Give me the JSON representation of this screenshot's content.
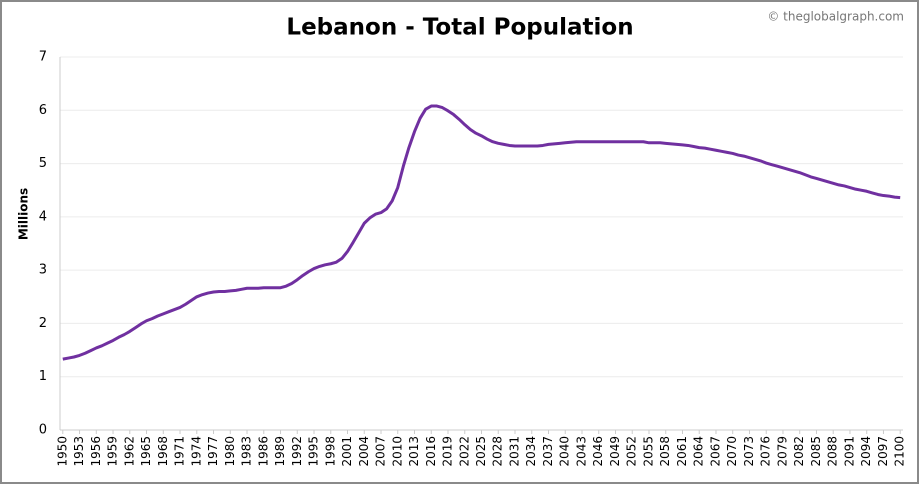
{
  "chart_data": {
    "type": "line",
    "title": "Lebanon - Total Population",
    "watermark": "© theglobalgraph.com",
    "ylabel": "Millions",
    "x": [
      1950,
      1951,
      1952,
      1953,
      1954,
      1955,
      1956,
      1957,
      1958,
      1959,
      1960,
      1961,
      1962,
      1963,
      1964,
      1965,
      1966,
      1967,
      1968,
      1969,
      1970,
      1971,
      1972,
      1973,
      1974,
      1975,
      1976,
      1977,
      1978,
      1979,
      1980,
      1981,
      1982,
      1983,
      1984,
      1985,
      1986,
      1987,
      1988,
      1989,
      1990,
      1991,
      1992,
      1993,
      1994,
      1995,
      1996,
      1997,
      1998,
      1999,
      2000,
      2001,
      2002,
      2003,
      2004,
      2005,
      2006,
      2007,
      2008,
      2009,
      2010,
      2011,
      2012,
      2013,
      2014,
      2015,
      2016,
      2017,
      2018,
      2019,
      2020,
      2021,
      2022,
      2023,
      2024,
      2025,
      2026,
      2027,
      2028,
      2029,
      2030,
      2031,
      2032,
      2033,
      2034,
      2035,
      2036,
      2037,
      2038,
      2039,
      2040,
      2041,
      2042,
      2043,
      2044,
      2045,
      2046,
      2047,
      2048,
      2049,
      2050,
      2051,
      2052,
      2053,
      2054,
      2055,
      2056,
      2057,
      2058,
      2059,
      2060,
      2061,
      2062,
      2063,
      2064,
      2065,
      2066,
      2067,
      2068,
      2069,
      2070,
      2071,
      2072,
      2073,
      2074,
      2075,
      2076,
      2077,
      2078,
      2079,
      2080,
      2081,
      2082,
      2083,
      2084,
      2085,
      2086,
      2087,
      2088,
      2089,
      2090,
      2091,
      2092,
      2093,
      2094,
      2095,
      2096,
      2097,
      2098,
      2099,
      2100
    ],
    "values": [
      1.33,
      1.35,
      1.37,
      1.4,
      1.44,
      1.49,
      1.54,
      1.58,
      1.63,
      1.68,
      1.74,
      1.79,
      1.85,
      1.92,
      1.99,
      2.05,
      2.09,
      2.14,
      2.18,
      2.22,
      2.26,
      2.3,
      2.36,
      2.43,
      2.5,
      2.54,
      2.57,
      2.59,
      2.6,
      2.6,
      2.61,
      2.62,
      2.64,
      2.66,
      2.66,
      2.66,
      2.67,
      2.67,
      2.67,
      2.67,
      2.7,
      2.75,
      2.82,
      2.9,
      2.97,
      3.03,
      3.07,
      3.1,
      3.12,
      3.15,
      3.22,
      3.35,
      3.52,
      3.7,
      3.88,
      3.98,
      4.05,
      4.08,
      4.15,
      4.3,
      4.55,
      4.95,
      5.3,
      5.6,
      5.85,
      6.02,
      6.08,
      6.08,
      6.05,
      5.99,
      5.92,
      5.83,
      5.73,
      5.64,
      5.57,
      5.52,
      5.46,
      5.41,
      5.38,
      5.36,
      5.34,
      5.33,
      5.33,
      5.33,
      5.33,
      5.33,
      5.34,
      5.36,
      5.37,
      5.38,
      5.39,
      5.4,
      5.41,
      5.41,
      5.41,
      5.41,
      5.41,
      5.41,
      5.41,
      5.41,
      5.41,
      5.41,
      5.41,
      5.41,
      5.41,
      5.39,
      5.39,
      5.39,
      5.38,
      5.37,
      5.36,
      5.35,
      5.34,
      5.32,
      5.3,
      5.29,
      5.27,
      5.25,
      5.23,
      5.21,
      5.19,
      5.16,
      5.14,
      5.11,
      5.08,
      5.05,
      5.01,
      4.98,
      4.95,
      4.92,
      4.89,
      4.86,
      4.83,
      4.79,
      4.75,
      4.72,
      4.69,
      4.66,
      4.63,
      4.6,
      4.58,
      4.55,
      4.52,
      4.5,
      4.48,
      4.45,
      4.42,
      4.4,
      4.39,
      4.37,
      4.36
    ],
    "color": "#7030a0",
    "xlim": [
      1949.5,
      2100.5
    ],
    "xticks": [
      1950,
      1953,
      1956,
      1959,
      1962,
      1965,
      1968,
      1971,
      1974,
      1977,
      1980,
      1983,
      1986,
      1989,
      1992,
      1995,
      1998,
      2001,
      2004,
      2007,
      2010,
      2013,
      2016,
      2019,
      2022,
      2025,
      2028,
      2031,
      2034,
      2037,
      2040,
      2043,
      2046,
      2049,
      2052,
      2055,
      2058,
      2061,
      2064,
      2067,
      2070,
      2073,
      2076,
      2079,
      2082,
      2085,
      2088,
      2091,
      2094,
      2097,
      2100
    ],
    "ylim": [
      0,
      7
    ],
    "yticks": [
      0,
      1,
      2,
      3,
      4,
      5,
      6,
      7
    ],
    "grid": true
  }
}
